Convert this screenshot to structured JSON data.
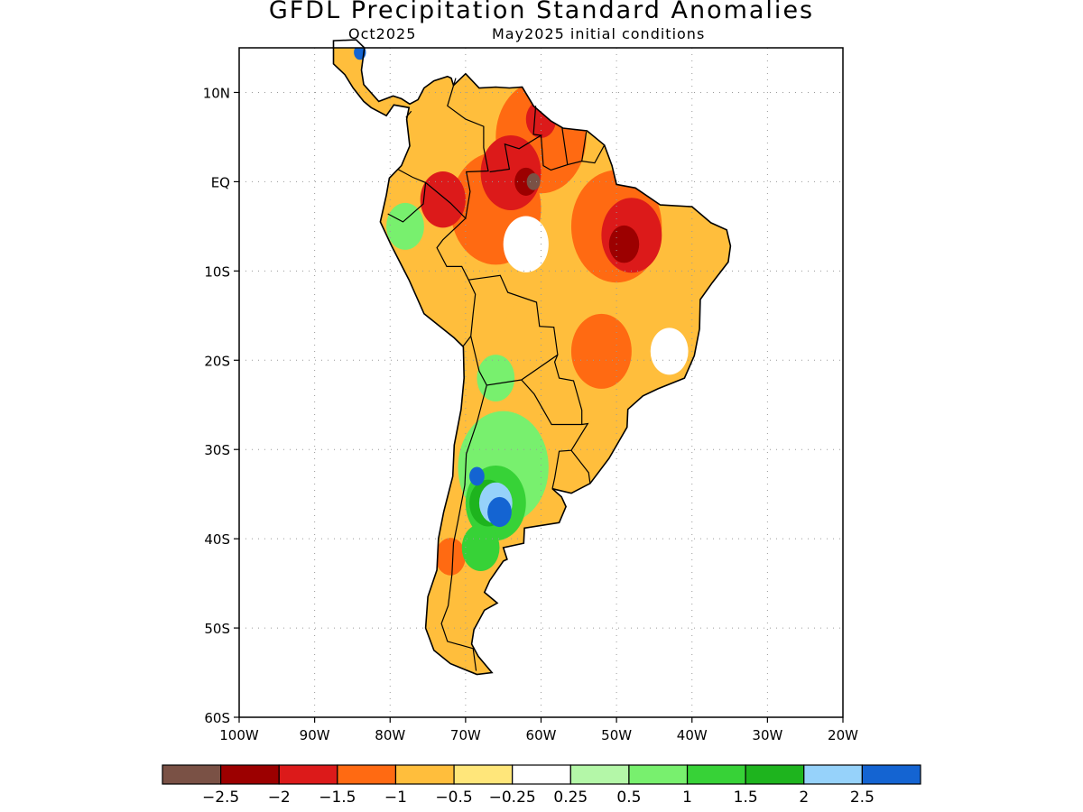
{
  "title": "GFDL Precipitation Standard Anomalies",
  "subtitle_left": "Oct2025",
  "subtitle_right": "May2025 initial conditions",
  "map": {
    "lon_range": [
      -100,
      -20
    ],
    "lat_range": [
      -60,
      15
    ],
    "lon_ticks": [
      {
        "value": -100,
        "label": "100W"
      },
      {
        "value": -90,
        "label": "90W"
      },
      {
        "value": -80,
        "label": "80W"
      },
      {
        "value": -70,
        "label": "70W"
      },
      {
        "value": -60,
        "label": "60W"
      },
      {
        "value": -50,
        "label": "50W"
      },
      {
        "value": -40,
        "label": "40W"
      },
      {
        "value": -30,
        "label": "30W"
      },
      {
        "value": -20,
        "label": "20W"
      }
    ],
    "lat_ticks": [
      {
        "value": 10,
        "label": "10N"
      },
      {
        "value": 0,
        "label": "EQ"
      },
      {
        "value": -10,
        "label": "10S"
      },
      {
        "value": -20,
        "label": "20S"
      },
      {
        "value": -30,
        "label": "30S"
      },
      {
        "value": -40,
        "label": "40S"
      },
      {
        "value": -50,
        "label": "50S"
      },
      {
        "value": -60,
        "label": "60S"
      }
    ],
    "gridlines": true
  },
  "colorbar": {
    "colors": [
      "#7a5145",
      "#9c0000",
      "#dc1a1a",
      "#ff6a12",
      "#ffbe3c",
      "#ffe67a",
      "#ffffff",
      "#b4f7a8",
      "#78f06e",
      "#37d237",
      "#1eb41e",
      "#96d2fa",
      "#1464d2"
    ],
    "labels": [
      "−2.5",
      "−2",
      "−1.5",
      "−1",
      "−0.5",
      "−0.25",
      "0.25",
      "0.5",
      "1",
      "1.5",
      "2",
      "2.5"
    ]
  },
  "anomaly_regions": [
    {
      "category": 6,
      "lon": -64,
      "lat": -15,
      "r": 11,
      "shape": "land-base"
    },
    {
      "category": 4,
      "lon": -67,
      "lat": -12,
      "r": 9
    },
    {
      "category": 4,
      "lon": -58,
      "lat": -20,
      "r": 8
    },
    {
      "category": 4,
      "lon": -69,
      "lat": -48,
      "r": 3
    },
    {
      "category": 3,
      "lon": -60,
      "lat": 5,
      "r": 6
    },
    {
      "category": 3,
      "lon": -66,
      "lat": -3,
      "r": 6
    },
    {
      "category": 3,
      "lon": -50,
      "lat": -5,
      "r": 6
    },
    {
      "category": 3,
      "lon": -52,
      "lat": -19,
      "r": 4
    },
    {
      "category": 3,
      "lon": -72,
      "lat": -42,
      "r": 2
    },
    {
      "category": 2,
      "lon": -64,
      "lat": 1,
      "r": 4
    },
    {
      "category": 2,
      "lon": -73,
      "lat": -2,
      "r": 3
    },
    {
      "category": 2,
      "lon": -48,
      "lat": -6,
      "r": 4
    },
    {
      "category": 2,
      "lon": -60,
      "lat": 7,
      "r": 2
    },
    {
      "category": 1,
      "lon": -49,
      "lat": -7,
      "r": 2
    },
    {
      "category": 1,
      "lon": -62,
      "lat": 0,
      "r": 1.5
    },
    {
      "category": 0,
      "lon": -61,
      "lat": 0,
      "r": 0.9
    },
    {
      "category": 6,
      "lon": -62,
      "lat": -7,
      "r": 3
    },
    {
      "category": 6,
      "lon": -43,
      "lat": -19,
      "r": 2.5
    },
    {
      "category": 6,
      "lon": -63,
      "lat": -30,
      "r": 2.5
    },
    {
      "category": 8,
      "lon": -66,
      "lat": -22,
      "r": 2.5
    },
    {
      "category": 8,
      "lon": -78,
      "lat": -5,
      "r": 2.5
    },
    {
      "category": 8,
      "lon": -65,
      "lat": -32,
      "r": 6
    },
    {
      "category": 9,
      "lon": -66,
      "lat": -36,
      "r": 4
    },
    {
      "category": 9,
      "lon": -68,
      "lat": -41,
      "r": 2.5
    },
    {
      "category": 10,
      "lon": -67,
      "lat": -36,
      "r": 2.5
    },
    {
      "category": 11,
      "lon": -66,
      "lat": -36,
      "r": 2.2
    },
    {
      "category": 12,
      "lon": -65.5,
      "lat": -37,
      "r": 1.6
    },
    {
      "category": 12,
      "lon": -68.5,
      "lat": -33,
      "r": 1.0
    },
    {
      "category": 12,
      "lon": -84,
      "lat": 14.5,
      "r": 0.8
    }
  ]
}
